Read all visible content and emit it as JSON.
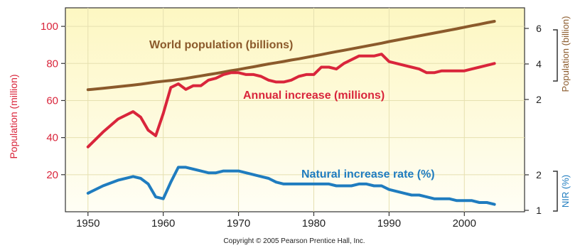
{
  "chart_data": {
    "type": "line",
    "x": [
      1950,
      1952,
      1954,
      1956,
      1957,
      1958,
      1959,
      1960,
      1961,
      1962,
      1963,
      1964,
      1965,
      1966,
      1967,
      1968,
      1969,
      1970,
      1971,
      1972,
      1973,
      1974,
      1975,
      1976,
      1977,
      1978,
      1979,
      1980,
      1981,
      1982,
      1983,
      1984,
      1985,
      1986,
      1987,
      1988,
      1989,
      1990,
      1991,
      1992,
      1993,
      1994,
      1995,
      1996,
      1997,
      1998,
      1999,
      2000,
      2001,
      2002,
      2003,
      2004
    ],
    "xlim": [
      1947,
      2008
    ],
    "x_ticks": [
      1950,
      1960,
      1970,
      1980,
      1990,
      2000
    ],
    "left_axis": {
      "label": "Population (million)",
      "ylim": [
        0,
        110
      ],
      "ticks": [
        20,
        40,
        60,
        80,
        100
      ]
    },
    "right_axis_population": {
      "label": "Population (billion)",
      "ticks": [
        2,
        4,
        6
      ]
    },
    "right_axis_nir": {
      "label": "NIR (%)",
      "ticks": [
        1,
        2
      ]
    },
    "series": [
      {
        "name": "World population (billions)",
        "color": "#8b5a2b",
        "axis": "population",
        "values": [
          2.55,
          2.63,
          2.72,
          2.81,
          2.86,
          2.92,
          2.98,
          3.03,
          3.07,
          3.13,
          3.19,
          3.26,
          3.33,
          3.4,
          3.47,
          3.54,
          3.62,
          3.69,
          3.77,
          3.84,
          3.92,
          4.0,
          4.07,
          4.14,
          4.22,
          4.29,
          4.37,
          4.45,
          4.53,
          4.61,
          4.69,
          4.77,
          4.85,
          4.93,
          5.01,
          5.09,
          5.17,
          5.26,
          5.34,
          5.42,
          5.5,
          5.58,
          5.66,
          5.74,
          5.82,
          5.9,
          5.98,
          6.07,
          6.15,
          6.23,
          6.32,
          6.4
        ]
      },
      {
        "name": "Annual increase (millions)",
        "color": "#d9253b",
        "axis": "left",
        "values": [
          35,
          43,
          50,
          54,
          51,
          44,
          41,
          53,
          67,
          69,
          66,
          68,
          68,
          71,
          72,
          74,
          75,
          75,
          74,
          74,
          73,
          71,
          70,
          70,
          71,
          73,
          74,
          74,
          78,
          78,
          77,
          80,
          82,
          84,
          84,
          84,
          85,
          81,
          80,
          79,
          78,
          77,
          75,
          75,
          76,
          76,
          76,
          76,
          77,
          78,
          79,
          80
        ]
      },
      {
        "name": "Natural increase rate (%)",
        "color": "#1f7cbf",
        "axis": "left",
        "values": [
          10,
          14,
          17,
          19,
          18,
          15,
          8,
          7,
          16,
          24,
          24,
          23,
          22,
          21,
          21,
          22,
          22,
          22,
          21,
          20,
          19,
          18,
          16,
          15,
          15,
          15,
          15,
          15,
          15,
          15,
          14,
          14,
          14,
          15,
          15,
          14,
          14,
          12,
          11,
          10,
          9,
          9,
          8,
          7,
          7,
          7,
          6,
          6,
          6,
          5,
          5,
          4
        ]
      }
    ],
    "annotations": [
      "World population (billions)",
      "Annual increase (millions)",
      "Natural increase rate (%)"
    ],
    "source_note": "Copyright © 2005 Pearson Prentice Hall, Inc."
  }
}
